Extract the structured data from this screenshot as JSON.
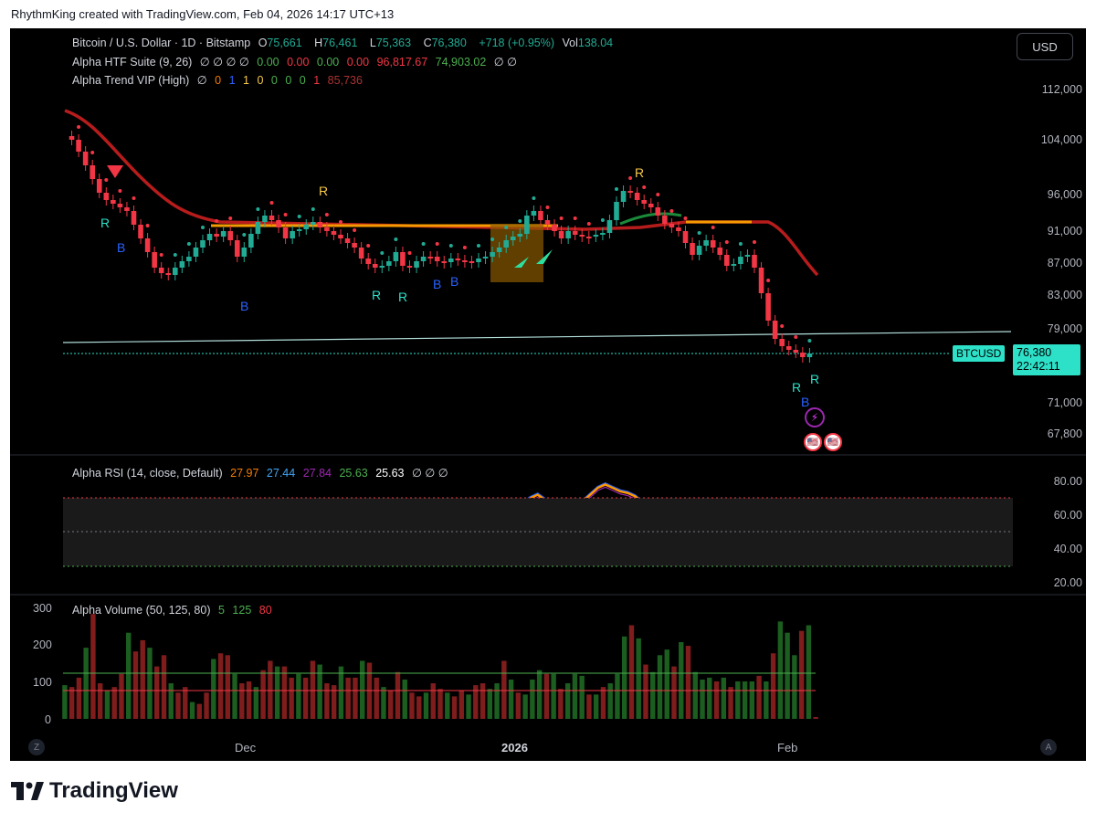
{
  "attribution": "RhythmKing created with TradingView.com, Feb 04, 2026 14:17 UTC+13",
  "main_legend": {
    "symbol": "Bitcoin / U.S. Dollar · 1D · Bitstamp",
    "o_label": "O",
    "o": "75,661",
    "h_label": "H",
    "h": "76,461",
    "l_label": "L",
    "l": "75,363",
    "c_label": "C",
    "c": "76,380",
    "change": "+718 (+0.95%)",
    "vol_label": "Vol",
    "vol": "138.04"
  },
  "htf_legend": {
    "name": "Alpha HTF Suite (9, 26)",
    "empties": "∅ ∅ ∅ ∅",
    "v1": "0.00",
    "v2": "0.00",
    "v3": "0.00",
    "v4": "0.00",
    "v5": "96,817.67",
    "v6": "74,903.02",
    "tail": "∅ ∅"
  },
  "trend_legend": {
    "name": "Alpha Trend VIP (High)",
    "empty": "∅",
    "n1": "0",
    "n2": "1",
    "n3": "1",
    "n4": "0",
    "n5": "0",
    "n6": "0",
    "n7": "0",
    "n8": "1",
    "value": "85,736"
  },
  "rsi_legend": {
    "name": "Alpha RSI (14, close, Default)",
    "v1": "27.97",
    "v2": "27.44",
    "v3": "27.84",
    "v4": "25.63",
    "v5": "25.63",
    "tail": "∅ ∅ ∅"
  },
  "volume_legend": {
    "name": "Alpha Volume (50, 125, 80)",
    "v1": "5",
    "v2": "125",
    "v3": "80"
  },
  "currency": "USD",
  "price_axis": [
    "112,000",
    "104,000",
    "96,000",
    "91,000",
    "87,000",
    "83,000",
    "79,000",
    "71,000",
    "67,800"
  ],
  "rsi_axis": [
    "80.00",
    "60.00",
    "40.00",
    "20.00"
  ],
  "volume_axis": [
    "300",
    "200",
    "100",
    "0"
  ],
  "last_price": {
    "ticker": "BTCUSD",
    "price": "76,380",
    "countdown": "22:42:11"
  },
  "x_axis": {
    "dec": "Dec",
    "year": "2026",
    "feb": "Feb"
  },
  "corner_left": "Z",
  "corner_right": "A",
  "footer_brand": "TradingView",
  "markers": {
    "r": "R",
    "b": "B"
  },
  "colors": {
    "up": "#22ab94",
    "down": "#f23645",
    "trend_red": "#b71c1c",
    "trend_orange": "#f59b00",
    "rsi_orange": "#ff9800",
    "rsi_blue": "#2962ff",
    "teal": "#2de0c8"
  }
}
